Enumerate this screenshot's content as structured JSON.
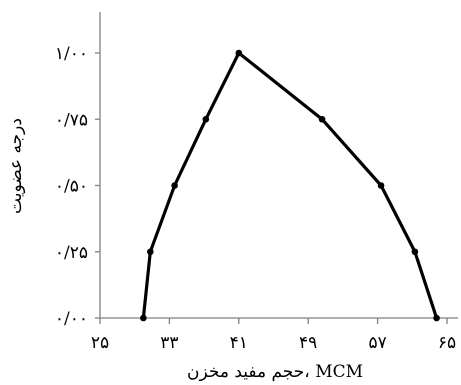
{
  "chart_data": {
    "type": "line",
    "title": "",
    "xlabel": "حجم مفید مخزن، MCM",
    "ylabel": "درجه عضویت",
    "x_ticks": [
      {
        "value": 25,
        "label": "۲۵"
      },
      {
        "value": 33,
        "label": "۳۳"
      },
      {
        "value": 41,
        "label": "۴۱"
      },
      {
        "value": 49,
        "label": "۴۹"
      },
      {
        "value": 57,
        "label": "۵۷"
      },
      {
        "value": 65,
        "label": "۶۵"
      }
    ],
    "y_ticks": [
      {
        "value": 0,
        "label": "۰/۰۰"
      },
      {
        "value": 0.25,
        "label": "۰/۲۵"
      },
      {
        "value": 0.5,
        "label": "۰/۵۰"
      },
      {
        "value": 0.75,
        "label": "۰/۷۵"
      },
      {
        "value": 1,
        "label": "۱/۰۰"
      }
    ],
    "xlim": [
      25,
      66.5
    ],
    "ylim": [
      0,
      1.2
    ],
    "grid": false,
    "series": [
      {
        "color": "#000000",
        "points": [
          {
            "x": 30.0,
            "y": 0.0
          },
          {
            "x": 30.8,
            "y": 0.25
          },
          {
            "x": 33.6,
            "y": 0.5
          },
          {
            "x": 37.2,
            "y": 0.75
          },
          {
            "x": 41.0,
            "y": 1.0
          },
          {
            "x": 50.6,
            "y": 0.75
          },
          {
            "x": 57.4,
            "y": 0.5
          },
          {
            "x": 61.3,
            "y": 0.25
          },
          {
            "x": 63.8,
            "y": 0.0
          }
        ]
      }
    ]
  }
}
